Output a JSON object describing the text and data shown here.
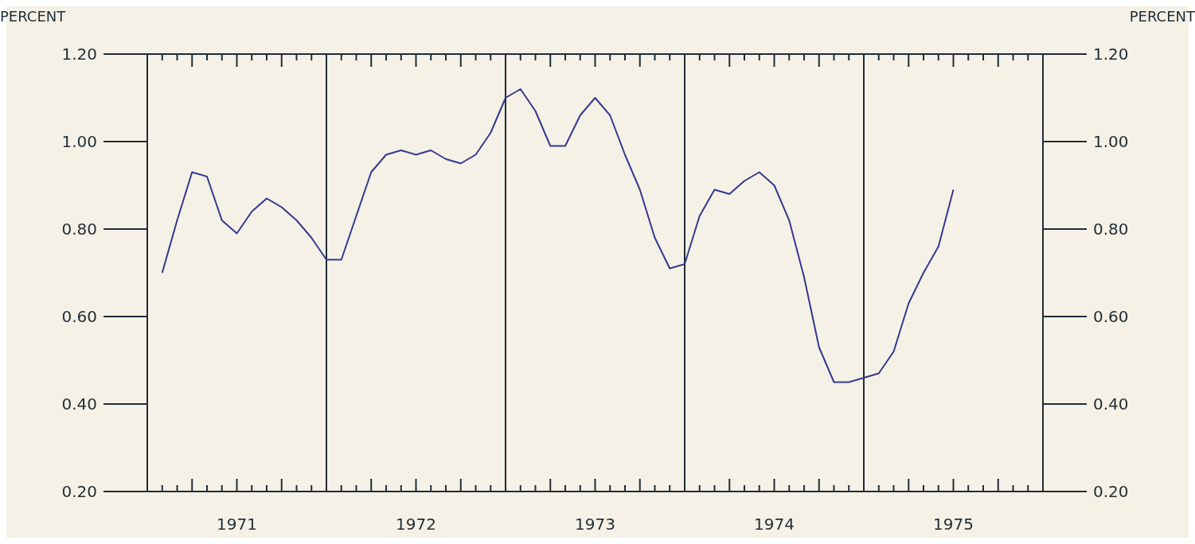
{
  "chart_data": {
    "type": "line",
    "ylabel": "PERCENT",
    "y2label": "PERCENT",
    "x": [
      "1971-02",
      "1971-03",
      "1971-04",
      "1971-05",
      "1971-06",
      "1971-07",
      "1971-08",
      "1971-09",
      "1971-10",
      "1971-11",
      "1971-12",
      "1972-01",
      "1972-02",
      "1972-03",
      "1972-04",
      "1972-05",
      "1972-06",
      "1972-07",
      "1972-08",
      "1972-09",
      "1972-10",
      "1972-11",
      "1972-12",
      "1973-01",
      "1973-02",
      "1973-03",
      "1973-04",
      "1973-05",
      "1973-06",
      "1973-07",
      "1973-08",
      "1973-09",
      "1973-10",
      "1973-11",
      "1973-12",
      "1974-01",
      "1974-02",
      "1974-03",
      "1974-04",
      "1974-05",
      "1974-06",
      "1974-07",
      "1974-08",
      "1974-09",
      "1974-10",
      "1974-11",
      "1974-12",
      "1975-01",
      "1975-02",
      "1975-03",
      "1975-04",
      "1975-05",
      "1975-06",
      "1975-07"
    ],
    "series": [
      {
        "color": "#34398f",
        "values": [
          0.7,
          0.82,
          0.93,
          0.92,
          0.82,
          0.79,
          0.84,
          0.87,
          0.85,
          0.82,
          0.78,
          0.73,
          0.73,
          0.83,
          0.93,
          0.97,
          0.98,
          0.97,
          0.98,
          0.96,
          0.95,
          0.97,
          1.02,
          1.1,
          1.12,
          1.07,
          0.99,
          0.99,
          1.06,
          1.1,
          1.06,
          0.97,
          0.89,
          0.78,
          0.71,
          0.72,
          0.83,
          0.89,
          0.88,
          0.91,
          0.93,
          0.9,
          0.82,
          0.69,
          0.53,
          0.45,
          0.45,
          0.46,
          0.47,
          0.52,
          0.63,
          0.7,
          0.76,
          0.89
        ]
      }
    ],
    "xlim": [
      "1971-01",
      "1976-01"
    ],
    "xticks": [
      {
        "value": "1971-02",
        "label": null
      },
      {
        "value": "1971-03",
        "label": null
      },
      {
        "value": "1971-04",
        "label": null
      },
      {
        "value": "1971-05",
        "label": null
      },
      {
        "value": "1971-06",
        "label": null
      },
      {
        "value": "1971-07",
        "label": "1971"
      },
      {
        "value": "1971-08",
        "label": null
      },
      {
        "value": "1971-09",
        "label": null
      },
      {
        "value": "1971-10",
        "label": null
      },
      {
        "value": "1971-11",
        "label": null
      },
      {
        "value": "1971-12",
        "label": null
      },
      {
        "value": "1972-02",
        "label": null
      },
      {
        "value": "1972-03",
        "label": null
      },
      {
        "value": "1972-04",
        "label": null
      },
      {
        "value": "1972-05",
        "label": null
      },
      {
        "value": "1972-06",
        "label": null
      },
      {
        "value": "1972-07",
        "label": "1972"
      },
      {
        "value": "1972-08",
        "label": null
      },
      {
        "value": "1972-09",
        "label": null
      },
      {
        "value": "1972-10",
        "label": null
      },
      {
        "value": "1972-11",
        "label": null
      },
      {
        "value": "1972-12",
        "label": null
      },
      {
        "value": "1973-02",
        "label": null
      },
      {
        "value": "1973-03",
        "label": null
      },
      {
        "value": "1973-04",
        "label": null
      },
      {
        "value": "1973-05",
        "label": null
      },
      {
        "value": "1973-06",
        "label": null
      },
      {
        "value": "1973-07",
        "label": "1973"
      },
      {
        "value": "1973-08",
        "label": null
      },
      {
        "value": "1973-09",
        "label": null
      },
      {
        "value": "1973-10",
        "label": null
      },
      {
        "value": "1973-11",
        "label": null
      },
      {
        "value": "1973-12",
        "label": null
      },
      {
        "value": "1974-02",
        "label": null
      },
      {
        "value": "1974-03",
        "label": null
      },
      {
        "value": "1974-04",
        "label": null
      },
      {
        "value": "1974-05",
        "label": null
      },
      {
        "value": "1974-06",
        "label": null
      },
      {
        "value": "1974-07",
        "label": "1974"
      },
      {
        "value": "1974-08",
        "label": null
      },
      {
        "value": "1974-09",
        "label": null
      },
      {
        "value": "1974-10",
        "label": null
      },
      {
        "value": "1974-11",
        "label": null
      },
      {
        "value": "1974-12",
        "label": null
      },
      {
        "value": "1975-02",
        "label": null
      },
      {
        "value": "1975-03",
        "label": null
      },
      {
        "value": "1975-04",
        "label": null
      },
      {
        "value": "1975-05",
        "label": null
      },
      {
        "value": "1975-06",
        "label": null
      },
      {
        "value": "1975-07",
        "label": "1975"
      },
      {
        "value": "1975-08",
        "label": null
      },
      {
        "value": "1975-09",
        "label": null
      },
      {
        "value": "1975-10",
        "label": null
      },
      {
        "value": "1975-11",
        "label": null
      },
      {
        "value": "1975-12",
        "label": null
      }
    ],
    "ylim": [
      0.2,
      1.2
    ],
    "yticks": [
      {
        "value": 0.2,
        "label": "0.20"
      },
      {
        "value": 0.4,
        "label": "0.40"
      },
      {
        "value": 0.6,
        "label": "0.60"
      },
      {
        "value": 0.8,
        "label": "0.80"
      },
      {
        "value": 1.0,
        "label": "1.00"
      },
      {
        "value": 1.2,
        "label": "1.20"
      }
    ],
    "y2lim": [
      0.2,
      1.2
    ],
    "y2ticks": [
      {
        "value": 0.2,
        "label": "0.20"
      },
      {
        "value": 0.4,
        "label": "0.40"
      },
      {
        "value": 0.6,
        "label": "0.60"
      },
      {
        "value": 0.8,
        "label": "0.80"
      },
      {
        "value": 1.0,
        "label": "1.00"
      },
      {
        "value": 1.2,
        "label": "1.20"
      }
    ],
    "ref_lines": [
      {
        "axis": "x",
        "value": "1972-01",
        "color": "#1f2d36"
      },
      {
        "axis": "x",
        "value": "1973-01",
        "color": "#1f2d36"
      },
      {
        "axis": "x",
        "value": "1974-01",
        "color": "#1f2d36"
      },
      {
        "axis": "x",
        "value": "1975-01",
        "color": "#1f2d36"
      }
    ],
    "marker": "none",
    "line_style": "solid"
  }
}
